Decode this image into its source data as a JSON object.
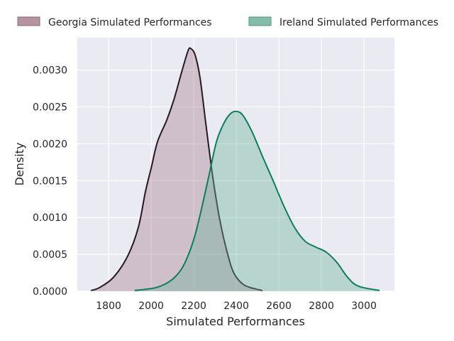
{
  "chart_data": {
    "type": "area",
    "title": "",
    "xlabel": "Simulated Performances",
    "ylabel": "Density",
    "xlim": [
      1653,
      3143
    ],
    "ylim": [
      0,
      0.00344
    ],
    "xticks": [
      1800,
      2000,
      2200,
      2400,
      2600,
      2800,
      3000
    ],
    "xtick_labels": [
      "1800",
      "2000",
      "2200",
      "2400",
      "2600",
      "2800",
      "3000"
    ],
    "yticks": [
      0,
      0.0005,
      0.001,
      0.0015,
      0.002,
      0.0025,
      0.003
    ],
    "ytick_labels": [
      "0.0000",
      "0.0005",
      "0.0010",
      "0.0015",
      "0.0020",
      "0.0025",
      "0.0030"
    ],
    "grid": true,
    "legend_position": "top",
    "series": [
      {
        "name": "Georgia Simulated Performances",
        "line_color": "#231a22",
        "fill_color": "#a8808f",
        "x": [
          1717,
          1757,
          1823,
          1890,
          1940,
          1973,
          2000,
          2030,
          2073,
          2107,
          2140,
          2173,
          2187,
          2207,
          2230,
          2257,
          2290,
          2323,
          2357,
          2390,
          2440,
          2523
        ],
        "y": [
          1e-05,
          5e-05,
          0.00019,
          0.00048,
          0.00087,
          0.00135,
          0.00167,
          0.00203,
          0.00232,
          0.0026,
          0.00294,
          0.00326,
          0.00329,
          0.0032,
          0.00289,
          0.00227,
          0.00154,
          0.00096,
          0.00053,
          0.00024,
          8e-05,
          1e-05
        ]
      },
      {
        "name": "Ireland Simulated Performances",
        "line_color": "#08805a",
        "fill_color": "#6fb39b",
        "x": [
          1923,
          2023,
          2090,
          2140,
          2173,
          2207,
          2240,
          2273,
          2307,
          2340,
          2373,
          2400,
          2430,
          2473,
          2523,
          2573,
          2623,
          2673,
          2723,
          2773,
          2823,
          2873,
          2923,
          2973,
          3073
        ],
        "y": [
          1e-05,
          5e-05,
          0.00014,
          0.00029,
          0.00048,
          0.00077,
          0.00116,
          0.00159,
          0.00203,
          0.00227,
          0.00241,
          0.00244,
          0.00239,
          0.00217,
          0.00183,
          0.0015,
          0.00116,
          0.00087,
          0.00068,
          0.0006,
          0.00053,
          0.00039,
          0.00019,
          7e-05,
          1e-05
        ]
      }
    ]
  }
}
